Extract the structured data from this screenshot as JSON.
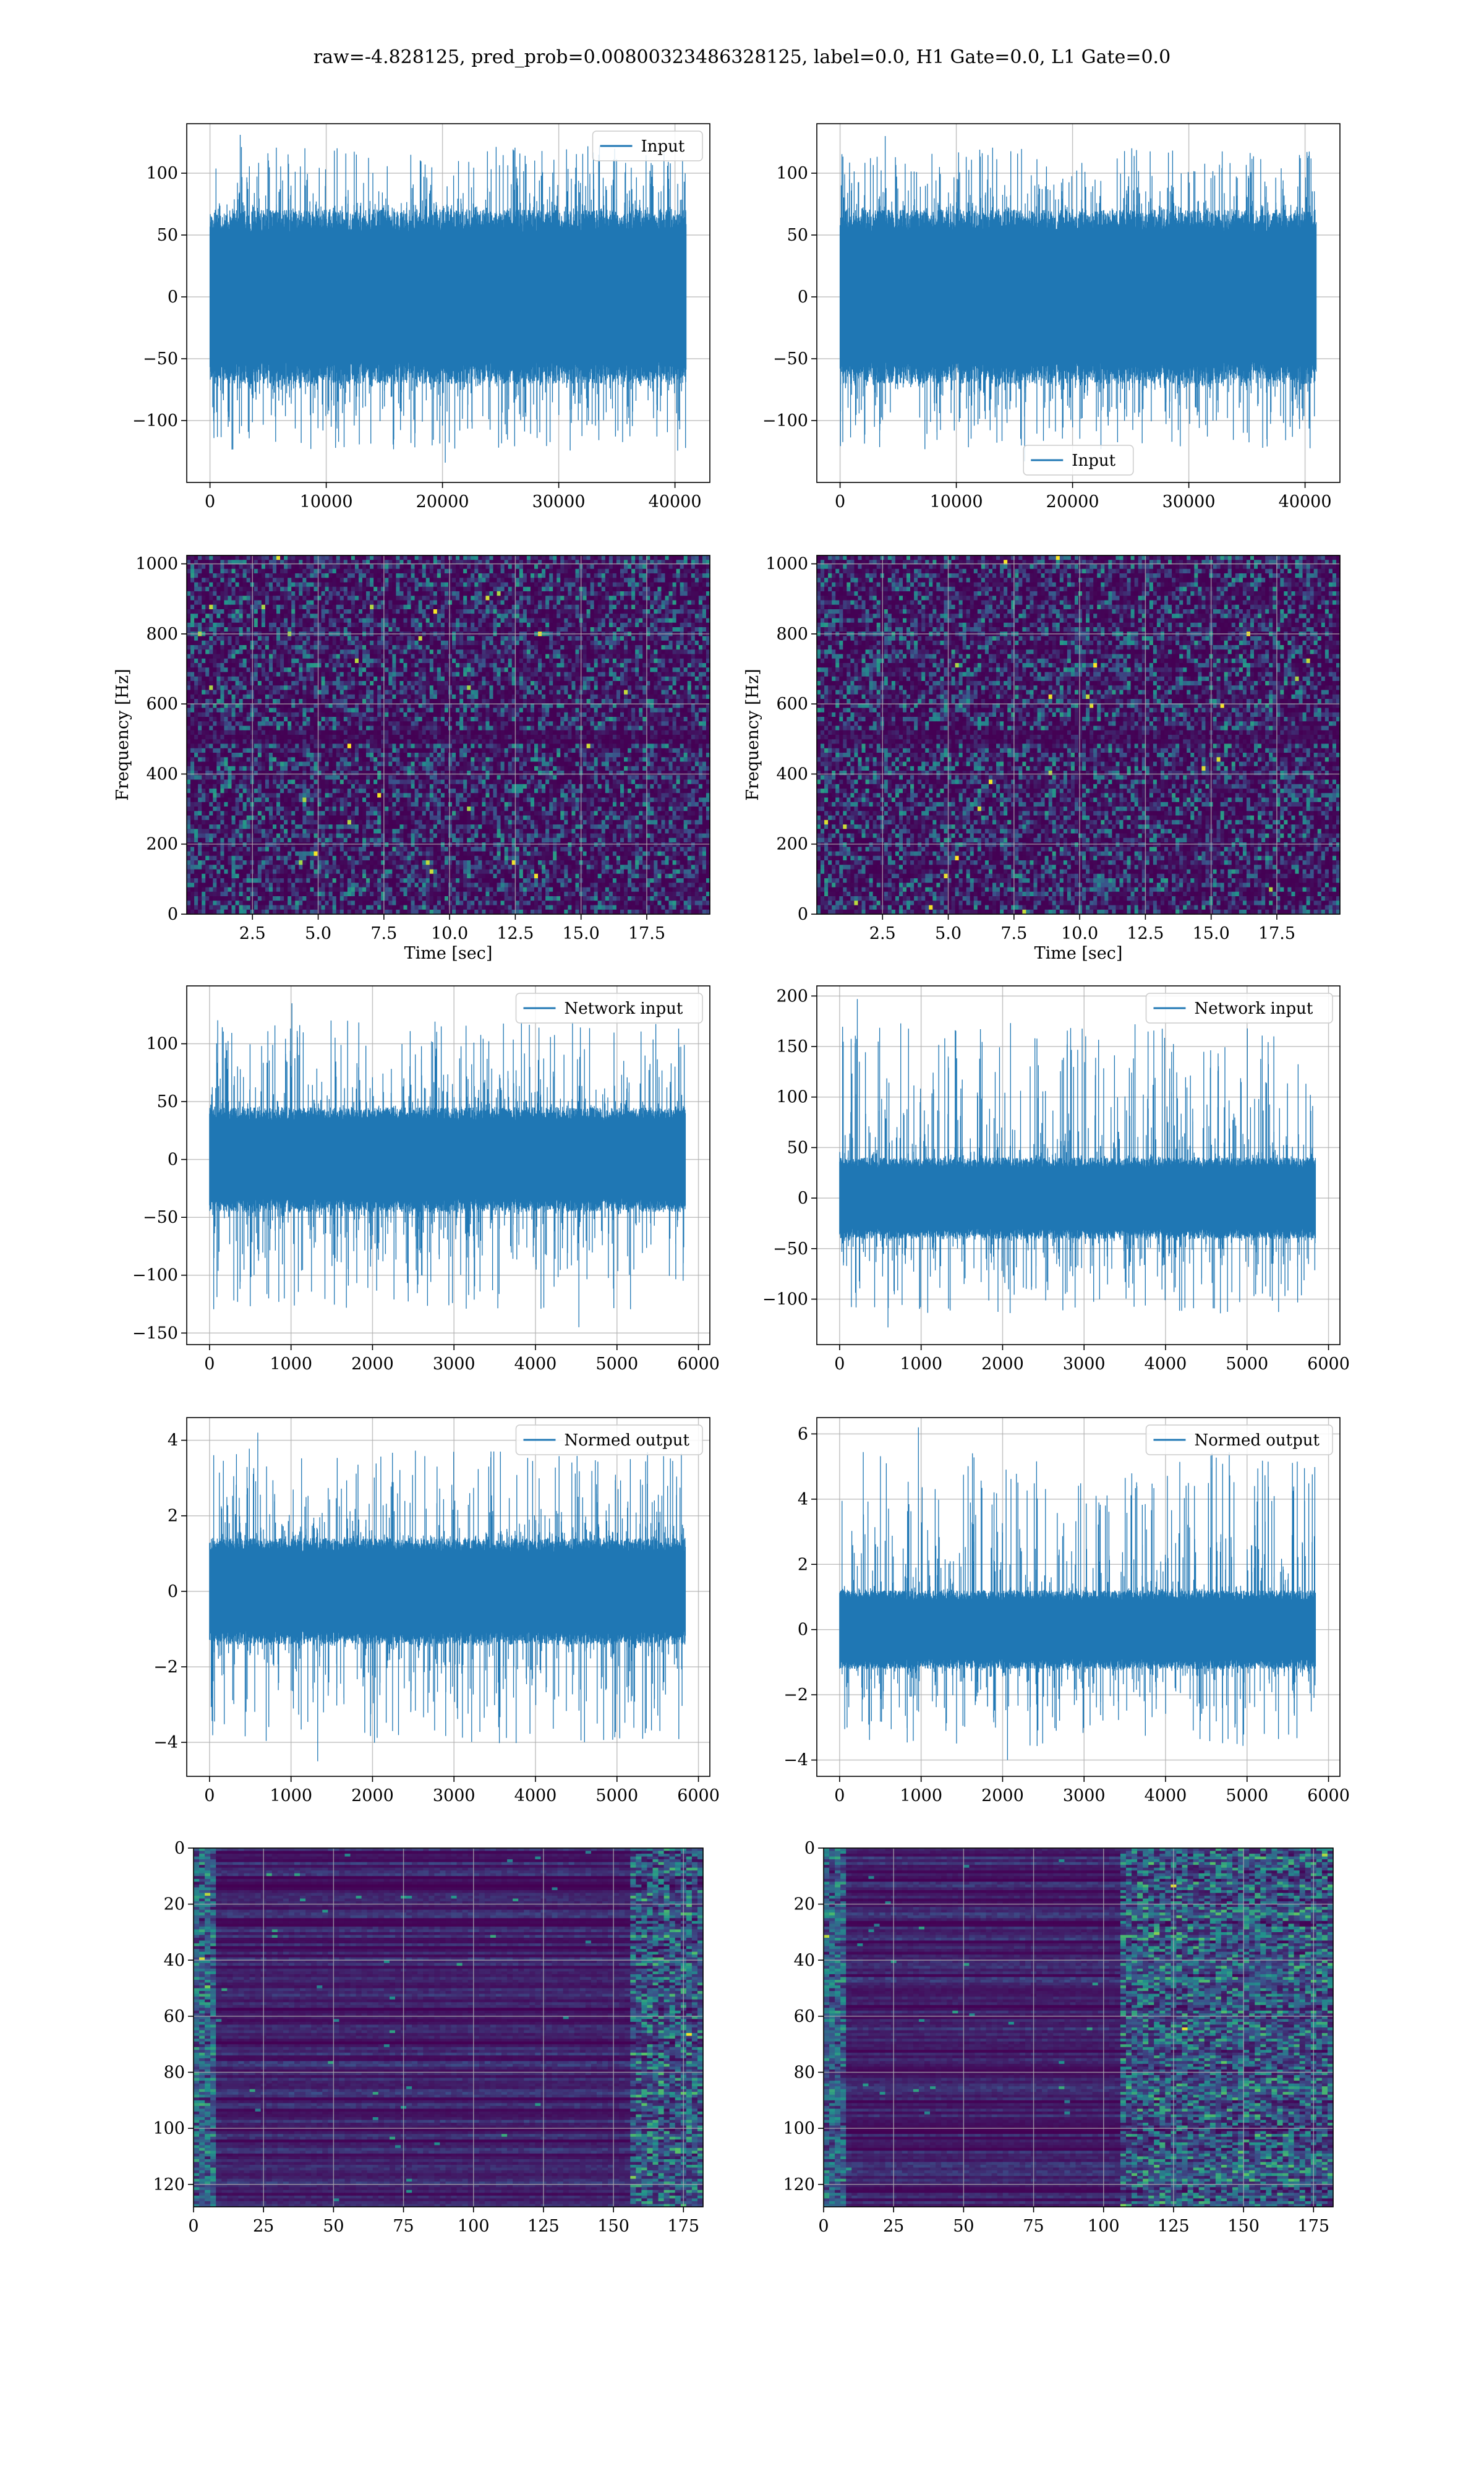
{
  "figure": {
    "suptitle": "raw=-4.828125, pred_prob=0.00800323486328125, label=0.0, H1 Gate=0.0, L1 Gate=0.0"
  },
  "colors": {
    "line": "#1f77b4",
    "grid": "#b0b0b0",
    "viridis_dark": "#440154",
    "viridis_mid": "#21918c",
    "viridis_bright": "#fde725"
  },
  "chart_data": [
    {
      "id": "input-left",
      "type": "line",
      "title": "",
      "xlabel": "",
      "ylabel": "",
      "xlim": [
        -2000,
        43000
      ],
      "ylim": [
        -150,
        140
      ],
      "xticks": [
        0,
        10000,
        20000,
        30000,
        40000
      ],
      "xtick_labels": [
        "0",
        "10000",
        "20000",
        "30000",
        "40000"
      ],
      "yticks": [
        -100,
        -50,
        0,
        50,
        100
      ],
      "ytick_labels": [
        "−100",
        "−50",
        "0",
        "50",
        "100"
      ],
      "grid": true,
      "legend": {
        "position": "upper right"
      },
      "series": [
        {
          "name": "Input",
          "x_range": [
            0,
            40960
          ],
          "amplitude": 70,
          "peak_max": 131,
          "peak_min": -134
        }
      ]
    },
    {
      "id": "input-right",
      "type": "line",
      "title": "",
      "xlabel": "",
      "ylabel": "",
      "xlim": [
        -2000,
        43000
      ],
      "ylim": [
        -150,
        140
      ],
      "xticks": [
        0,
        10000,
        20000,
        30000,
        40000
      ],
      "xtick_labels": [
        "0",
        "10000",
        "20000",
        "30000",
        "40000"
      ],
      "yticks": [
        -100,
        -50,
        0,
        50,
        100
      ],
      "ytick_labels": [
        "−100",
        "−50",
        "0",
        "50",
        "100"
      ],
      "grid": true,
      "legend": {
        "position": "lower center"
      },
      "series": [
        {
          "name": "Input",
          "x_range": [
            0,
            40960
          ],
          "amplitude": 70,
          "peak_max": 130,
          "peak_min": -133
        }
      ]
    },
    {
      "id": "spectrogram-left",
      "type": "heatmap",
      "title": "",
      "xlabel": "Time [sec]",
      "ylabel": "Frequency [Hz]",
      "xlim": [
        0,
        19.9
      ],
      "ylim": [
        0,
        1024
      ],
      "xticks": [
        2.5,
        5.0,
        7.5,
        10.0,
        12.5,
        15.0,
        17.5
      ],
      "xtick_labels": [
        "2.5",
        "5.0",
        "7.5",
        "10.0",
        "12.5",
        "15.0",
        "17.5"
      ],
      "yticks": [
        0,
        200,
        400,
        600,
        800,
        1000
      ],
      "ytick_labels": [
        "0",
        "200",
        "400",
        "600",
        "800",
        "1000"
      ],
      "grid": true,
      "colormap": "viridis",
      "dark_band_hz": [
        480,
        520
      ]
    },
    {
      "id": "spectrogram-right",
      "type": "heatmap",
      "title": "",
      "xlabel": "Time [sec]",
      "ylabel": "Frequency [Hz]",
      "xlim": [
        0,
        19.9
      ],
      "ylim": [
        0,
        1024
      ],
      "xticks": [
        2.5,
        5.0,
        7.5,
        10.0,
        12.5,
        15.0,
        17.5
      ],
      "xtick_labels": [
        "2.5",
        "5.0",
        "7.5",
        "10.0",
        "12.5",
        "15.0",
        "17.5"
      ],
      "yticks": [
        0,
        200,
        400,
        600,
        800,
        1000
      ],
      "ytick_labels": [
        "0",
        "200",
        "400",
        "600",
        "800",
        "1000"
      ],
      "grid": true,
      "colormap": "viridis",
      "dark_band_hz": [
        480,
        520
      ]
    },
    {
      "id": "network-input-left",
      "type": "line",
      "title": "",
      "xlabel": "",
      "ylabel": "",
      "xlim": [
        -280,
        6140
      ],
      "ylim": [
        -160,
        150
      ],
      "xticks": [
        0,
        1000,
        2000,
        3000,
        4000,
        5000,
        6000
      ],
      "xtick_labels": [
        "0",
        "1000",
        "2000",
        "3000",
        "4000",
        "5000",
        "6000"
      ],
      "yticks": [
        -150,
        -100,
        -50,
        0,
        50,
        100
      ],
      "ytick_labels": [
        "−150",
        "−100",
        "−50",
        "0",
        "50",
        "100"
      ],
      "grid": true,
      "legend": {
        "position": "upper right"
      },
      "series": [
        {
          "name": "Network input",
          "x_range": [
            0,
            5840
          ],
          "amplitude": 45,
          "peak_max": 135,
          "peak_min": -145
        }
      ]
    },
    {
      "id": "network-input-right",
      "type": "line",
      "title": "",
      "xlabel": "",
      "ylabel": "",
      "xlim": [
        -280,
        6140
      ],
      "ylim": [
        -145,
        210
      ],
      "xticks": [
        0,
        1000,
        2000,
        3000,
        4000,
        5000,
        6000
      ],
      "xtick_labels": [
        "0",
        "1000",
        "2000",
        "3000",
        "4000",
        "5000",
        "6000"
      ],
      "yticks": [
        -100,
        -50,
        0,
        50,
        100,
        150,
        200
      ],
      "ytick_labels": [
        "−100",
        "−50",
        "0",
        "50",
        "100",
        "150",
        "200"
      ],
      "grid": true,
      "legend": {
        "position": "upper right"
      },
      "series": [
        {
          "name": "Network input",
          "x_range": [
            0,
            5840
          ],
          "amplitude": 40,
          "peak_max": 197,
          "peak_min": -128
        }
      ]
    },
    {
      "id": "normed-output-left",
      "type": "line",
      "title": "",
      "xlabel": "",
      "ylabel": "",
      "xlim": [
        -280,
        6140
      ],
      "ylim": [
        -4.9,
        4.6
      ],
      "xticks": [
        0,
        1000,
        2000,
        3000,
        4000,
        5000,
        6000
      ],
      "xtick_labels": [
        "0",
        "1000",
        "2000",
        "3000",
        "4000",
        "5000",
        "6000"
      ],
      "yticks": [
        -4,
        -2,
        0,
        2,
        4
      ],
      "ytick_labels": [
        "−4",
        "−2",
        "0",
        "2",
        "4"
      ],
      "grid": true,
      "legend": {
        "position": "upper right"
      },
      "series": [
        {
          "name": "Normed output",
          "x_range": [
            0,
            5840
          ],
          "amplitude": 1.4,
          "peak_max": 4.2,
          "peak_min": -4.5
        }
      ]
    },
    {
      "id": "normed-output-right",
      "type": "line",
      "title": "",
      "xlabel": "",
      "ylabel": "",
      "xlim": [
        -280,
        6140
      ],
      "ylim": [
        -4.5,
        6.5
      ],
      "xticks": [
        0,
        1000,
        2000,
        3000,
        4000,
        5000,
        6000
      ],
      "xtick_labels": [
        "0",
        "1000",
        "2000",
        "3000",
        "4000",
        "5000",
        "6000"
      ],
      "yticks": [
        -4,
        -2,
        0,
        2,
        4,
        6
      ],
      "ytick_labels": [
        "−4",
        "−2",
        "0",
        "2",
        "4",
        "6"
      ],
      "grid": true,
      "legend": {
        "position": "upper right"
      },
      "series": [
        {
          "name": "Normed output",
          "x_range": [
            0,
            5840
          ],
          "amplitude": 1.2,
          "peak_max": 6.2,
          "peak_min": -4.0
        }
      ]
    },
    {
      "id": "feature-map-left",
      "type": "heatmap",
      "title": "",
      "xlabel": "",
      "ylabel": "",
      "xlim": [
        0,
        182
      ],
      "ylim": [
        128,
        0
      ],
      "xticks": [
        0,
        25,
        50,
        75,
        100,
        125,
        150,
        175
      ],
      "xtick_labels": [
        "0",
        "25",
        "50",
        "75",
        "100",
        "125",
        "150",
        "175"
      ],
      "yticks": [
        0,
        20,
        40,
        60,
        80,
        100,
        120
      ],
      "ytick_labels": [
        "0",
        "20",
        "40",
        "60",
        "80",
        "100",
        "120"
      ],
      "grid": true,
      "colormap": "viridis",
      "bright_columns_from": 155
    },
    {
      "id": "feature-map-right",
      "type": "heatmap",
      "title": "",
      "xlabel": "",
      "ylabel": "",
      "xlim": [
        0,
        182
      ],
      "ylim": [
        128,
        0
      ],
      "xticks": [
        0,
        25,
        50,
        75,
        100,
        125,
        150,
        175
      ],
      "xtick_labels": [
        "0",
        "25",
        "50",
        "75",
        "100",
        "125",
        "150",
        "175"
      ],
      "yticks": [
        0,
        20,
        40,
        60,
        80,
        100,
        120
      ],
      "ytick_labels": [
        "0",
        "20",
        "40",
        "60",
        "80",
        "100",
        "120"
      ],
      "grid": true,
      "colormap": "viridis",
      "bright_columns_from": 105
    }
  ]
}
